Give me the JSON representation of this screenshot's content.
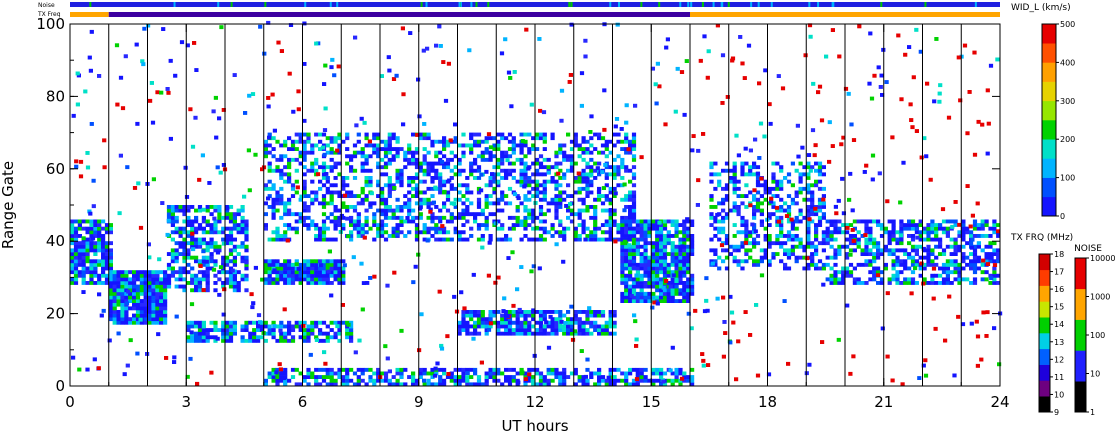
{
  "chart_data": {
    "type": "heatmap",
    "xlabel": "UT hours",
    "ylabel": "Range Gate",
    "xlim": [
      0,
      24
    ],
    "ylim": [
      0,
      100
    ],
    "x_ticks": [
      "0",
      "3",
      "6",
      "9",
      "12",
      "15",
      "18",
      "21",
      "24"
    ],
    "y_ticks": [
      "0",
      "20",
      "40",
      "60",
      "80",
      "100"
    ],
    "hour_marks": [
      1,
      2,
      3,
      4,
      5,
      6,
      7,
      8,
      9,
      10,
      11,
      12,
      13,
      14,
      15,
      16,
      17,
      18,
      19,
      20,
      21,
      22,
      23
    ],
    "top_strips": {
      "noise_label": "Noise",
      "txfreq_label": "TX Freq",
      "txfreq_change_hours": [
        1,
        16
      ]
    },
    "colorbars": {
      "width": {
        "title": "WID_L (km/s)",
        "ticks": [
          "0",
          "100",
          "200",
          "300",
          "400",
          "500"
        ],
        "colors": [
          "#1414ff",
          "#0050ff",
          "#00b4ff",
          "#00e0c8",
          "#00d200",
          "#96e600",
          "#e6d200",
          "#ffa000",
          "#ff5000",
          "#e60000"
        ]
      },
      "txfreq": {
        "title": "TX FRQ (MHz)",
        "ticks": [
          "9",
          "10",
          "11",
          "12",
          "13",
          "14",
          "15",
          "16",
          "17",
          "18"
        ],
        "colors": [
          "#000000",
          "#6e0080",
          "#1e00dc",
          "#0060ff",
          "#00d0e6",
          "#00d000",
          "#c8e600",
          "#ffa500",
          "#ff3c00",
          "#d20000"
        ]
      },
      "noise": {
        "title": "NOISE",
        "ticks": [
          "1",
          "10",
          "100",
          "1000",
          "10000"
        ],
        "colors": [
          "#000000",
          "#2020ff",
          "#00d000",
          "#ffa500",
          "#e60000"
        ]
      }
    },
    "echo_regions": [
      {
        "hours": [
          0.0,
          1.0
        ],
        "gates": [
          28,
          46
        ],
        "density": 0.8
      },
      {
        "hours": [
          1.0,
          2.5
        ],
        "gates": [
          17,
          32
        ],
        "density": 0.95
      },
      {
        "hours": [
          2.5,
          4.5
        ],
        "gates": [
          26,
          50
        ],
        "density": 0.6
      },
      {
        "hours": [
          5.0,
          7.0
        ],
        "gates": [
          28,
          35
        ],
        "density": 0.9
      },
      {
        "hours": [
          3.0,
          7.2
        ],
        "gates": [
          12,
          18
        ],
        "density": 0.7
      },
      {
        "hours": [
          5.0,
          14.5
        ],
        "gates": [
          40,
          70
        ],
        "density": 0.45
      },
      {
        "hours": [
          10.0,
          14.0
        ],
        "gates": [
          14,
          21
        ],
        "density": 0.75
      },
      {
        "hours": [
          14.2,
          16.0
        ],
        "gates": [
          23,
          46
        ],
        "density": 0.85
      },
      {
        "hours": [
          5.0,
          16.0
        ],
        "gates": [
          0,
          5
        ],
        "density": 0.6
      },
      {
        "hours": [
          16.5,
          19.5
        ],
        "gates": [
          32,
          62
        ],
        "density": 0.45
      },
      {
        "hours": [
          19.5,
          24.0
        ],
        "gates": [
          28,
          46
        ],
        "density": 0.55
      }
    ]
  }
}
